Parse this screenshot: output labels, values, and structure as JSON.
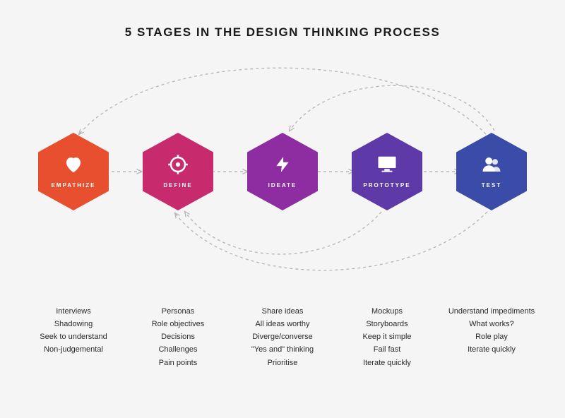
{
  "type": "infographic",
  "title": "5 STAGES IN THE DESIGN THINKING PROCESS",
  "title_fontsize": 17,
  "title_color": "#1a1a1a",
  "background_color": "#f5f5f5",
  "hexagon": {
    "width": 100,
    "height": 110
  },
  "label_style": {
    "color": "#ffffff",
    "fontsize": 8,
    "letter_spacing": 2,
    "weight": 700
  },
  "icon_color": "#ffffff",
  "arrow_color": "#b8b8b8",
  "arrow_dash": "4 4",
  "bullet_style": {
    "fontsize": 11,
    "color": "#2a2a2a",
    "line_height": 1.65
  },
  "stages": [
    {
      "key": "empathize",
      "label": "EMPATHIZE",
      "color": "#e84f2e",
      "icon": "heart",
      "bullets": [
        "Interviews",
        "Shadowing",
        "Seek to understand",
        "Non-judgemental"
      ]
    },
    {
      "key": "define",
      "label": "DEFINE",
      "color": "#c72b6e",
      "icon": "target",
      "bullets": [
        "Personas",
        "Role objectives",
        "Decisions",
        "Challenges",
        "Pain points"
      ]
    },
    {
      "key": "ideate",
      "label": "IDEATE",
      "color": "#8e2da2",
      "icon": "bolt",
      "bullets": [
        "Share ideas",
        "All ideas worthy",
        "Diverge/converse",
        "\"Yes and\" thinking",
        "Prioritise"
      ]
    },
    {
      "key": "prototype",
      "label": "PROTOTYPE",
      "color": "#5e3aa8",
      "icon": "monitor",
      "bullets": [
        "Mockups",
        "Storyboards",
        "Keep it simple",
        "Fail fast",
        "Iterate quickly"
      ]
    },
    {
      "key": "test",
      "label": "TEST",
      "color": "#3a4ba8",
      "icon": "users",
      "bullets": [
        "Understand impediments",
        "What works?",
        "Role play",
        "Iterate quickly"
      ]
    }
  ],
  "forward_arrows": [
    {
      "from": 0,
      "to": 1
    },
    {
      "from": 1,
      "to": 2
    },
    {
      "from": 2,
      "to": 3
    },
    {
      "from": 3,
      "to": 4
    }
  ],
  "feedback_arrows_top": [
    {
      "from": 4,
      "to": 2,
      "note": "top short curve"
    },
    {
      "from": 4,
      "to": 0,
      "note": "top long curve"
    }
  ],
  "feedback_arrows_bottom": [
    {
      "from": 3,
      "to": 1,
      "note": "bottom curve"
    },
    {
      "from": 4,
      "to": 1,
      "note": "bottom long curve"
    }
  ]
}
